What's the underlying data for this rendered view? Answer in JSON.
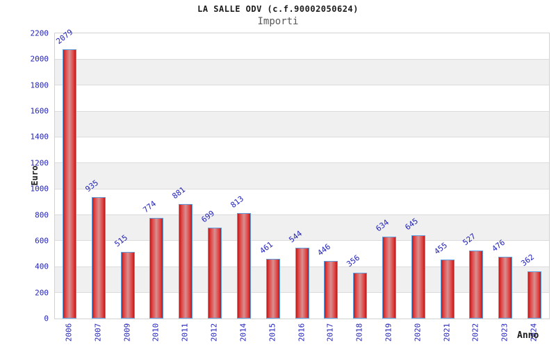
{
  "header": {
    "title": "LA SALLE ODV (c.f.90002050624)",
    "subtitle": "Importi"
  },
  "colors": {
    "tick_label_blue": "#2222bb",
    "bar_red_edge": "#b51c1c",
    "bar_red_mid": "#d89090",
    "bar_border_blue": "#5e9fe0",
    "band_gray": "#f0f0f0",
    "band_white": "#ffffff",
    "gridline_gray": "#dcdcdc",
    "subtitle_gray": "#585858"
  },
  "chart_data": {
    "type": "bar",
    "title": "LA SALLE ODV (c.f.90002050624)",
    "subtitle": "Importi",
    "xlabel": "Anno",
    "ylabel": "Euro",
    "categories": [
      "2006",
      "2007",
      "2009",
      "2010",
      "2011",
      "2012",
      "2014",
      "2015",
      "2016",
      "2017",
      "2018",
      "2019",
      "2020",
      "2021",
      "2022",
      "2023",
      "2024"
    ],
    "values": [
      2079,
      935,
      515,
      774,
      881,
      699,
      813,
      461,
      544,
      446,
      356,
      634,
      645,
      455,
      527,
      476,
      362
    ],
    "ylim": [
      0,
      2200
    ],
    "ytick_step": 200,
    "yticks": [
      0,
      200,
      400,
      600,
      800,
      1000,
      1200,
      1400,
      1600,
      1800,
      2000,
      2200
    ],
    "grid": true,
    "alternating_bands": true,
    "legend_position": "none",
    "value_labels_rotated": true,
    "x_labels_rotated": true
  }
}
